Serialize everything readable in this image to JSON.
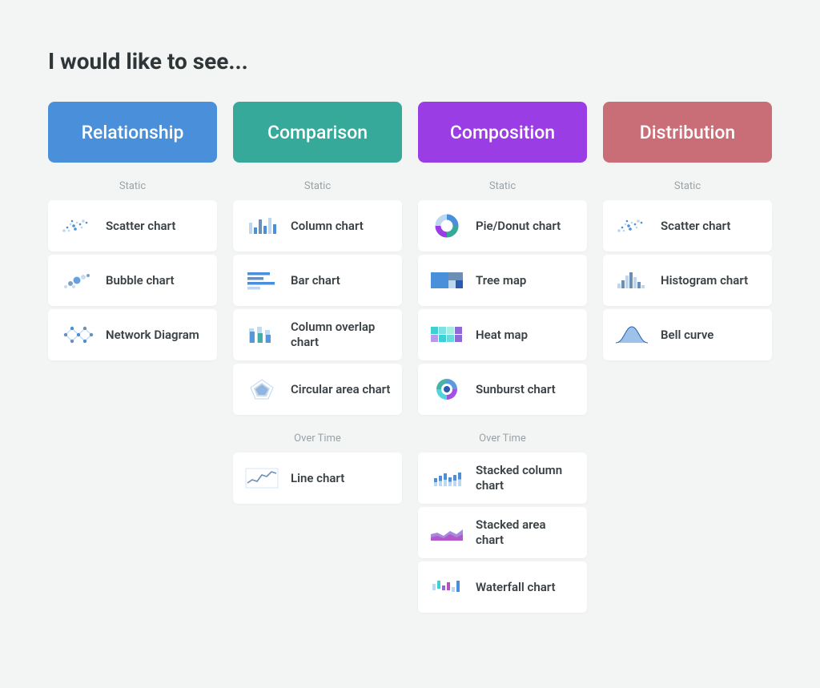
{
  "page_title": "I would like to see...",
  "palette": {
    "blue": "#4a8fd9",
    "teal": "#36a99b",
    "purple": "#9a3de4",
    "rose": "#c96e77",
    "cyan": "#3fd0d4",
    "violet": "#8f6ad7",
    "navy": "#2b5bb0",
    "slate": "#6b8fb5",
    "ice": "#bcd7ef"
  },
  "columns": [
    {
      "id": "relationship",
      "title": "Relationship",
      "color": "#4a8fd9",
      "sections": [
        {
          "label": "Static",
          "items": [
            {
              "id": "scatter-chart",
              "label": "Scatter chart",
              "icon": "scatter"
            },
            {
              "id": "bubble-chart",
              "label": "Bubble chart",
              "icon": "bubble"
            },
            {
              "id": "network-diagram",
              "label": "Network Diagram",
              "icon": "network"
            }
          ]
        }
      ]
    },
    {
      "id": "comparison",
      "title": "Comparison",
      "color": "#36a99b",
      "sections": [
        {
          "label": "Static",
          "items": [
            {
              "id": "column-chart",
              "label": "Column chart",
              "icon": "column"
            },
            {
              "id": "bar-chart",
              "label": "Bar chart",
              "icon": "bars"
            },
            {
              "id": "column-overlap-chart",
              "label": "Column overlap chart",
              "icon": "col-ovl"
            },
            {
              "id": "circular-area-chart",
              "label": "Circular area chart",
              "icon": "radar"
            }
          ]
        },
        {
          "label": "Over Time",
          "items": [
            {
              "id": "line-chart",
              "label": "Line chart",
              "icon": "line"
            }
          ]
        }
      ]
    },
    {
      "id": "composition",
      "title": "Composition",
      "color": "#9a3de4",
      "sections": [
        {
          "label": "Static",
          "items": [
            {
              "id": "pie-donut-chart",
              "label": "Pie/Donut chart",
              "icon": "donut"
            },
            {
              "id": "tree-map",
              "label": "Tree map",
              "icon": "treemap"
            },
            {
              "id": "heat-map",
              "label": "Heat map",
              "icon": "heatmap"
            },
            {
              "id": "sunburst-chart",
              "label": "Sunburst chart",
              "icon": "sunburst"
            }
          ]
        },
        {
          "label": "Over Time",
          "items": [
            {
              "id": "stacked-column-chart",
              "label": "Stacked column chart",
              "icon": "stackcol"
            },
            {
              "id": "stacked-area-chart",
              "label": "Stacked area chart",
              "icon": "stackarea"
            },
            {
              "id": "waterfall-chart",
              "label": "Waterfall chart",
              "icon": "waterfall"
            }
          ]
        }
      ]
    },
    {
      "id": "distribution",
      "title": "Distribution",
      "color": "#c96e77",
      "sections": [
        {
          "label": "Static",
          "items": [
            {
              "id": "scatter-chart-d",
              "label": "Scatter chart",
              "icon": "scatter"
            },
            {
              "id": "histogram-chart",
              "label": "Histogram chart",
              "icon": "histogram"
            },
            {
              "id": "bell-curve",
              "label": "Bell curve",
              "icon": "bell"
            }
          ]
        }
      ]
    }
  ]
}
